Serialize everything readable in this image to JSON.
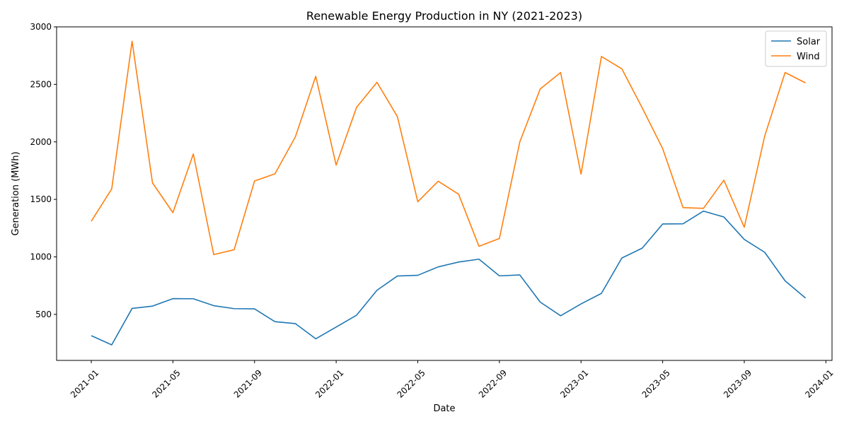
{
  "chart_data": {
    "type": "line",
    "title": "Renewable Energy Production in NY (2021-2023)",
    "xlabel": "Date",
    "ylabel": "Generation (MWh)",
    "x_start": "2021-01",
    "x": [
      "2021-01",
      "2021-02",
      "2021-03",
      "2021-04",
      "2021-05",
      "2021-06",
      "2021-07",
      "2021-08",
      "2021-09",
      "2021-10",
      "2021-11",
      "2021-12",
      "2022-01",
      "2022-02",
      "2022-03",
      "2022-04",
      "2022-05",
      "2022-06",
      "2022-07",
      "2022-08",
      "2022-09",
      "2022-10",
      "2022-11",
      "2022-12",
      "2023-01",
      "2023-02",
      "2023-03",
      "2023-04",
      "2023-05",
      "2023-06",
      "2023-07",
      "2023-08",
      "2023-09",
      "2023-10",
      "2023-11",
      "2023-12"
    ],
    "x_index": [
      0,
      1,
      2,
      3,
      4,
      5,
      6,
      7,
      8,
      9,
      10,
      11,
      12,
      13,
      14,
      15,
      16,
      17,
      18,
      19,
      20,
      21,
      22,
      23,
      24,
      25,
      26,
      27,
      28,
      29,
      30,
      31,
      32,
      33,
      34,
      35
    ],
    "xlim": [
      -1.7,
      36.3
    ],
    "ylim": [
      100,
      3000
    ],
    "xticks": [
      {
        "label": "2021-01",
        "value": 0
      },
      {
        "label": "2021-05",
        "value": 4
      },
      {
        "label": "2021-09",
        "value": 8
      },
      {
        "label": "2022-01",
        "value": 12
      },
      {
        "label": "2022-05",
        "value": 16
      },
      {
        "label": "2022-09",
        "value": 20
      },
      {
        "label": "2023-01",
        "value": 24
      },
      {
        "label": "2023-05",
        "value": 28
      },
      {
        "label": "2023-09",
        "value": 32
      },
      {
        "label": "2024-01",
        "value": 36
      }
    ],
    "yticks": [
      500,
      1000,
      1500,
      2000,
      2500,
      3000
    ],
    "legend": "top-right",
    "grid": false,
    "series": [
      {
        "name": "Solar",
        "color": "#1f77b4",
        "values": [
          315,
          235,
          552,
          572,
          637,
          636,
          576,
          550,
          548,
          437,
          420,
          288,
          390,
          493,
          710,
          834,
          840,
          913,
          955,
          980,
          835,
          843,
          607,
          488,
          591,
          683,
          990,
          1076,
          1286,
          1288,
          1398,
          1347,
          1152,
          1040,
          792,
          642
        ]
      },
      {
        "name": "Wind",
        "color": "#ff7f0e",
        "values": [
          1310,
          1590,
          2875,
          1643,
          1385,
          1895,
          1020,
          1062,
          1660,
          1722,
          2043,
          2570,
          1798,
          2300,
          2518,
          2220,
          1480,
          1658,
          1545,
          1092,
          1160,
          2000,
          2460,
          2603,
          1720,
          2742,
          2635,
          2295,
          1942,
          1428,
          1422,
          1667,
          1258,
          2050,
          2603,
          2513
        ]
      }
    ]
  }
}
